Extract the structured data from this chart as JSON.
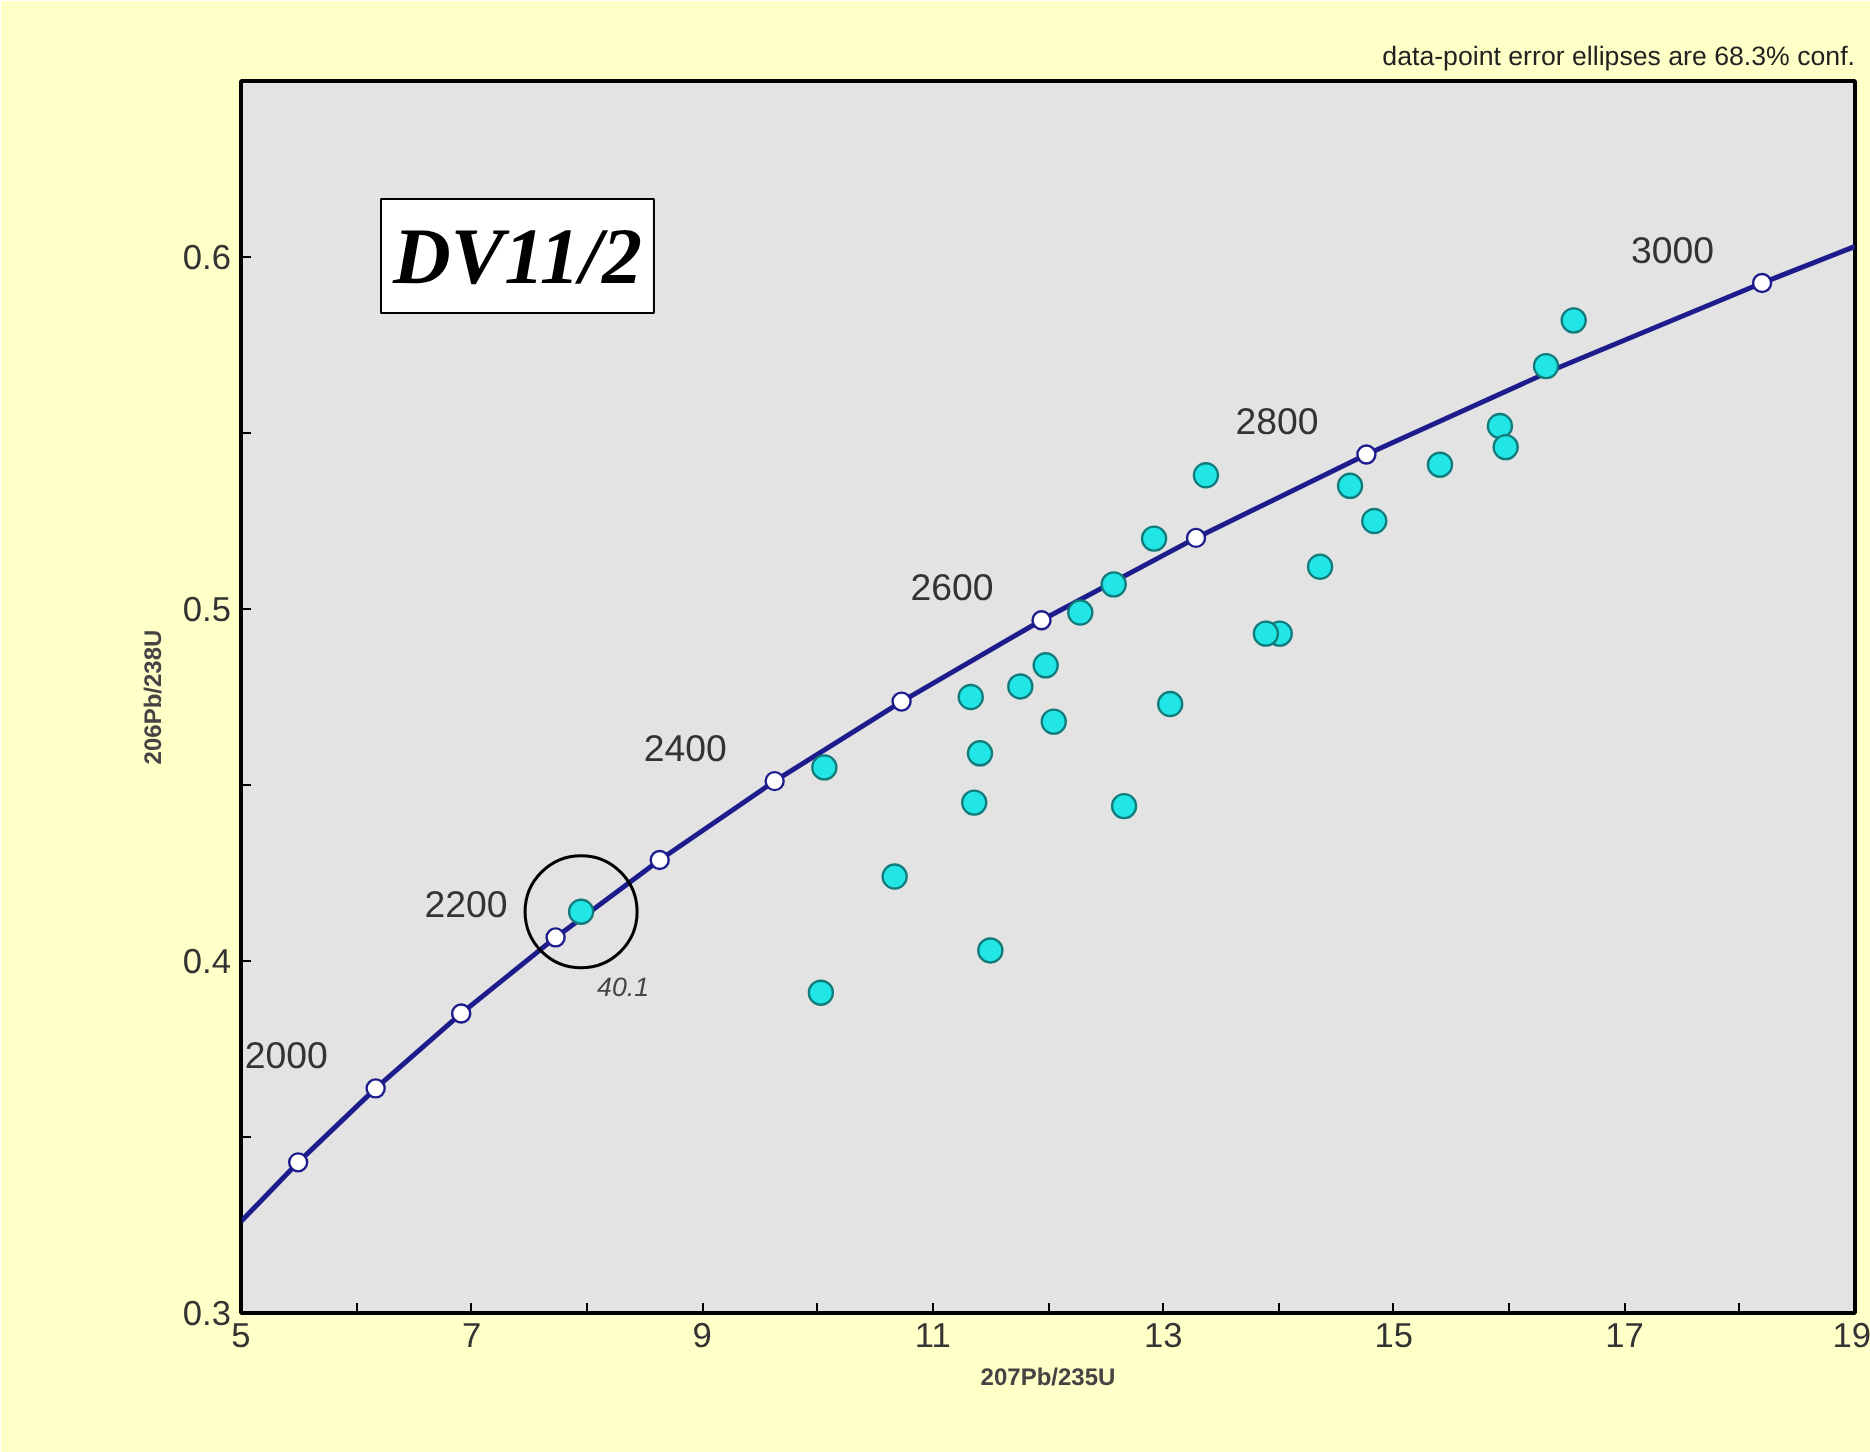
{
  "chart_data": {
    "type": "scatter",
    "title": "DV11/2",
    "xlabel": "207Pb/235U",
    "ylabel": "206Pb/238U",
    "xlim": [
      5,
      19
    ],
    "ylim": [
      0.3,
      0.65
    ],
    "xticks": [
      5,
      {
        "value": 6,
        "label": null
      },
      7,
      {
        "value": 8,
        "label": null
      },
      9,
      {
        "value": 10,
        "label": null
      },
      11,
      {
        "value": 12,
        "label": null
      },
      13,
      {
        "value": 14,
        "label": null
      },
      15,
      {
        "value": 16,
        "label": null
      },
      17,
      {
        "value": 18,
        "label": null
      },
      19
    ],
    "yticks": [
      0.3,
      {
        "value": 0.35,
        "label": null
      },
      0.4,
      {
        "value": 0.45,
        "label": null
      },
      0.5,
      {
        "value": 0.55,
        "label": null
      },
      0.6
    ],
    "grid": false,
    "series": [
      {
        "type": "line",
        "color": "#1c1c8c",
        "marker": "none",
        "x": [
          5,
          5.496,
          6.168,
          6.91,
          7.729,
          8.632,
          9.629,
          10.73,
          11.944,
          13.284,
          14.762,
          16.394,
          18.194,
          19
        ],
        "values": [
          0.326,
          0.3428,
          0.3638,
          0.3851,
          0.4067,
          0.4287,
          0.4511,
          0.4737,
          0.4968,
          0.5202,
          0.5439,
          0.5681,
          0.5926,
          0.603
        ]
      },
      {
        "color": "#ffffff",
        "marker": "circle",
        "x": [
          5.496,
          6.168,
          6.91,
          7.729,
          8.632,
          9.629,
          10.73,
          11.944,
          13.284,
          14.762,
          16.394,
          18.194
        ],
        "values": [
          0.3428,
          0.3638,
          0.3851,
          0.4067,
          0.4287,
          0.4511,
          0.4737,
          0.4968,
          0.5202,
          0.5439,
          null,
          0.5926
        ]
      },
      {
        "color": "#22e6e6",
        "marker": "circle",
        "x": [
          7.95,
          10.03,
          10.06,
          11.33,
          11.76,
          11.98,
          11.41,
          11.36,
          12.05,
          12.28,
          12.57,
          12.92,
          13.06,
          12.66,
          10.67,
          11.5,
          13.37,
          14.01,
          14.62,
          13.89,
          14.36,
          14.83,
          15.4,
          15.92,
          15.97,
          16.32,
          16.56
        ],
        "values": [
          0.414,
          0.391,
          0.455,
          0.475,
          0.478,
          0.484,
          0.459,
          0.445,
          0.468,
          0.499,
          0.507,
          0.52,
          0.473,
          0.444,
          0.424,
          0.403,
          0.538,
          0.493,
          0.535,
          0.493,
          0.512,
          0.525,
          0.541,
          0.552,
          0.546,
          0.569,
          0.582
        ]
      }
    ],
    "annotations": [
      "data-point error ellipses are 68.3% conf.",
      {
        "text": "2000",
        "x": 6.168,
        "y": 0.3638
      },
      {
        "text": "2200",
        "x": 7.729,
        "y": 0.4067
      },
      {
        "text": "2400",
        "x": 9.629,
        "y": 0.4511
      },
      {
        "text": "2600",
        "x": 11.944,
        "y": 0.4968
      },
      {
        "text": "2800",
        "x": 14.762,
        "y": 0.5439
      },
      {
        "text": "3000",
        "x": 18.194,
        "y": 0.5926
      },
      {
        "text": "40.1",
        "x": 7.95,
        "y": 0.414
      }
    ]
  }
}
